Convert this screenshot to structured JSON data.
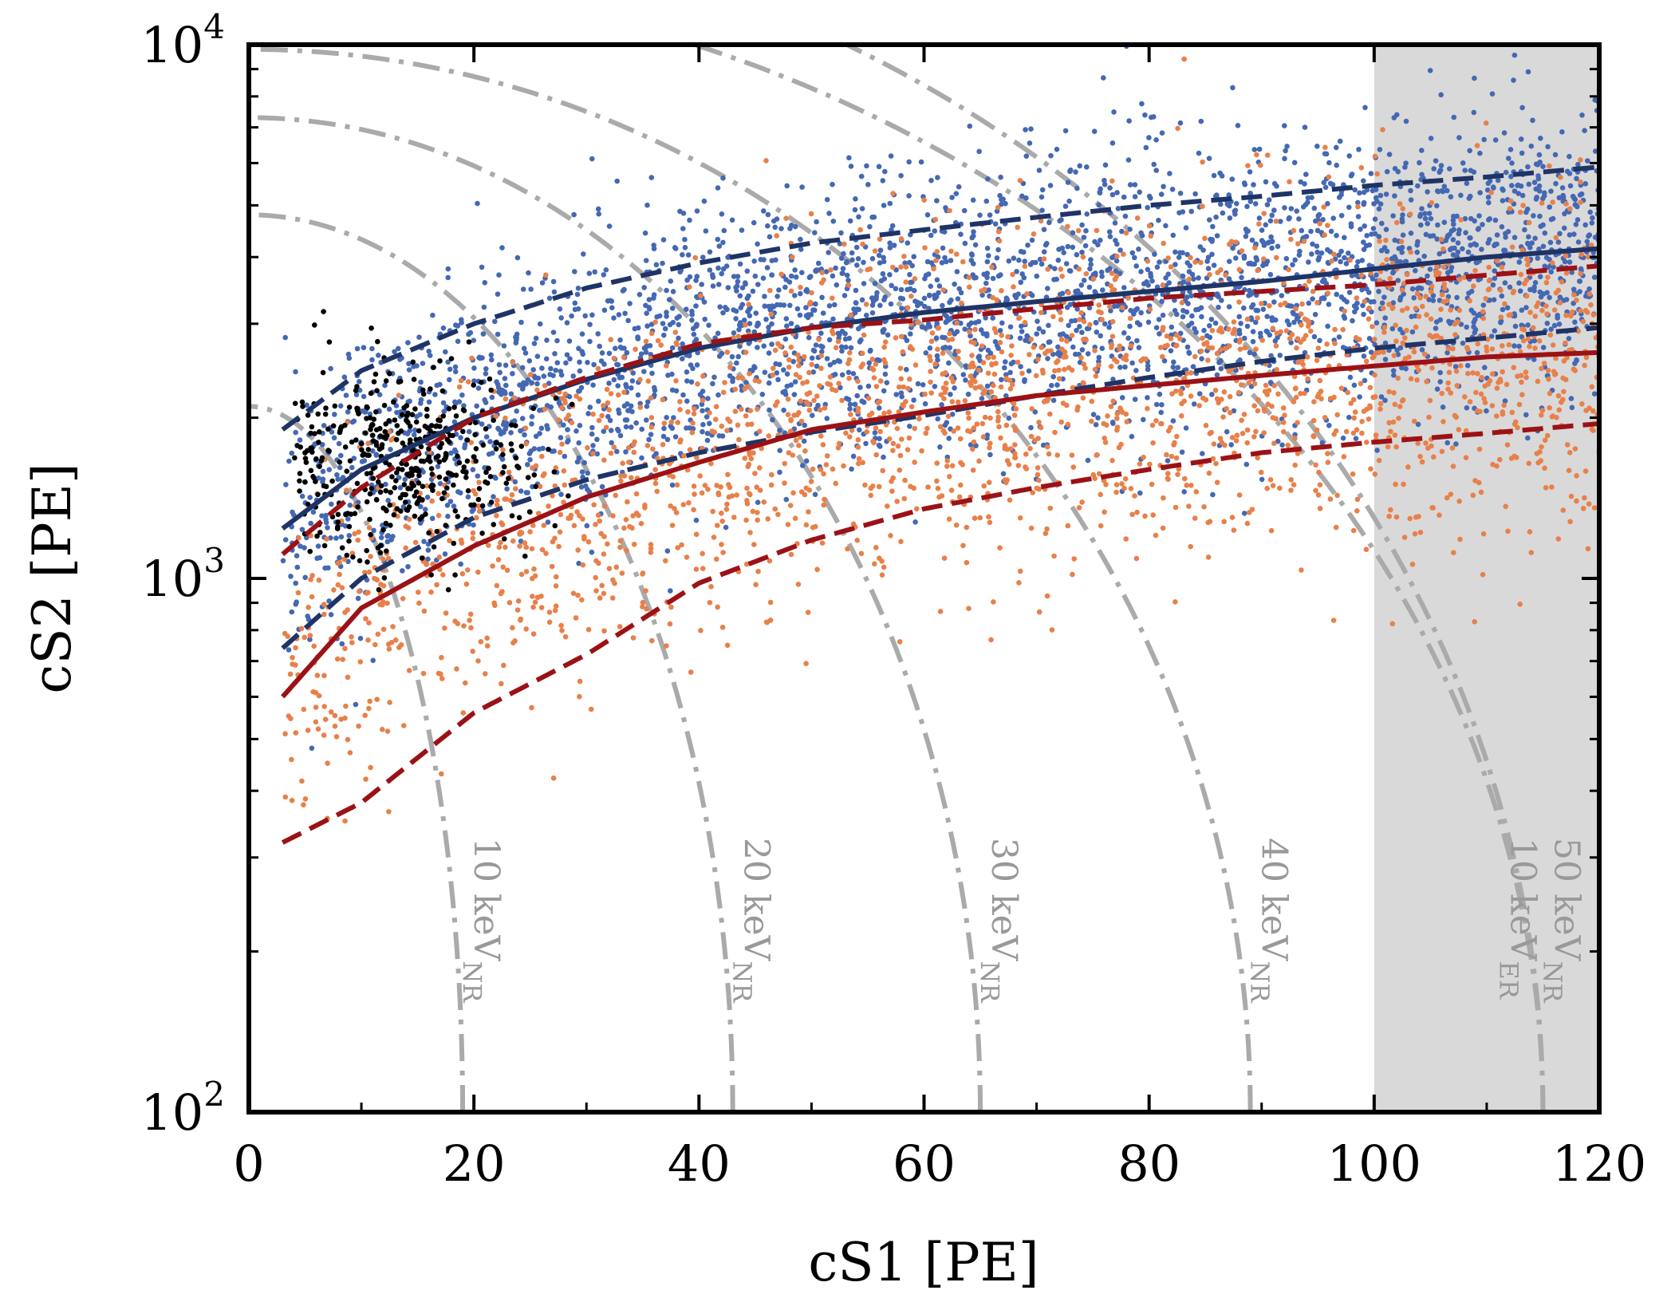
{
  "chart_data": {
    "type": "scatter",
    "xlabel": "cS1 [PE]",
    "ylabel": "cS2 [PE]",
    "xlim": [
      0,
      120
    ],
    "ylim": [
      100,
      10000
    ],
    "yscale": "log",
    "x_ticks": [
      "0",
      "20",
      "40",
      "60",
      "80",
      "100",
      "120"
    ],
    "y_ticks": [
      {
        "base": "10",
        "exp": "2",
        "value": 100
      },
      {
        "base": "10",
        "exp": "3",
        "value": 1000
      },
      {
        "base": "10",
        "exp": "4",
        "value": 10000
      }
    ],
    "shaded_region": {
      "x_from": 100,
      "x_to": 120,
      "color": "#d9d9d9"
    },
    "colors": {
      "er_band": "#1f3466",
      "nr_band": "#9b1216",
      "er_points": "#4468b3",
      "nr_points": "#e8804a",
      "calib_points": "#000000",
      "contours": "#aaaaaa"
    },
    "bands": [
      {
        "name": "ER median",
        "style": "solid",
        "color": "#1f3466",
        "x": [
          3,
          10,
          20,
          30,
          40,
          50,
          60,
          70,
          80,
          90,
          100,
          110,
          120
        ],
        "y": [
          1240,
          1600,
          2000,
          2360,
          2700,
          2950,
          3150,
          3300,
          3450,
          3600,
          3800,
          4000,
          4150
        ]
      },
      {
        "name": "ER upper",
        "style": "dashed",
        "color": "#1f3466",
        "x": [
          3,
          10,
          20,
          30,
          40,
          50,
          60,
          70,
          80,
          90,
          100,
          110,
          120
        ],
        "y": [
          1900,
          2450,
          3000,
          3500,
          3900,
          4250,
          4500,
          4750,
          5000,
          5200,
          5450,
          5650,
          5900
        ]
      },
      {
        "name": "ER lower",
        "style": "dashed",
        "color": "#1f3466",
        "x": [
          3,
          10,
          20,
          30,
          40,
          50,
          60,
          70,
          80,
          90,
          100,
          110,
          120
        ],
        "y": [
          740,
          1000,
          1300,
          1530,
          1720,
          1880,
          2020,
          2200,
          2380,
          2550,
          2700,
          2820,
          2950
        ]
      },
      {
        "name": "NR median",
        "style": "solid",
        "color": "#9b1216",
        "x": [
          3,
          10,
          20,
          30,
          40,
          50,
          60,
          70,
          80,
          90,
          100,
          110,
          120
        ],
        "y": [
          600,
          880,
          1150,
          1420,
          1650,
          1900,
          2050,
          2200,
          2300,
          2400,
          2500,
          2600,
          2650
        ]
      },
      {
        "name": "NR upper",
        "style": "dashed",
        "color": "#9b1216",
        "x": [
          3,
          10,
          20,
          30,
          40,
          50,
          60,
          70,
          80,
          90,
          100,
          110,
          120
        ],
        "y": [
          1110,
          1480,
          2000,
          2380,
          2750,
          2950,
          3050,
          3200,
          3350,
          3450,
          3550,
          3700,
          3850
        ]
      },
      {
        "name": "NR lower",
        "style": "dashed",
        "color": "#9b1216",
        "x": [
          3,
          10,
          20,
          30,
          40,
          50,
          60,
          70,
          80,
          90,
          100,
          110,
          120
        ],
        "y": [
          320,
          380,
          560,
          720,
          980,
          1180,
          1350,
          1480,
          1600,
          1720,
          1800,
          1870,
          1950
        ]
      }
    ],
    "scatter_clusters": [
      {
        "name": "ER calibration",
        "color": "#4468b3",
        "count": 3200,
        "x_range": [
          3,
          120
        ],
        "y_median_band": "ER median",
        "spread": 0.13
      },
      {
        "name": "NR calibration",
        "color": "#e8804a",
        "count": 2200,
        "x_range": [
          3,
          120
        ],
        "y_median_band": "NR median",
        "spread": 0.16
      },
      {
        "name": "Science data",
        "color": "#000000",
        "count": 420,
        "x_range": [
          4,
          29
        ],
        "y_center": 1650,
        "spread": 0.09
      }
    ],
    "energy_contours": [
      {
        "label": "10 keV",
        "sub": "NR",
        "x_intercept": 19,
        "y_intercept": 2100
      },
      {
        "label": "20 keV",
        "sub": "NR",
        "x_intercept": 43,
        "y_intercept": 4800
      },
      {
        "label": "30 keV",
        "sub": "NR",
        "x_intercept": 65,
        "y_intercept": 7300
      },
      {
        "label": "40 keV",
        "sub": "NR",
        "x_intercept": 89,
        "y_intercept": 9800
      },
      {
        "label": "50 keV",
        "sub": "NR",
        "x_intercept": 115,
        "y_intercept": 13500
      },
      {
        "label": "10 keV",
        "sub": "ER",
        "x_intercept": 115,
        "y_intercept": 18000
      }
    ]
  }
}
